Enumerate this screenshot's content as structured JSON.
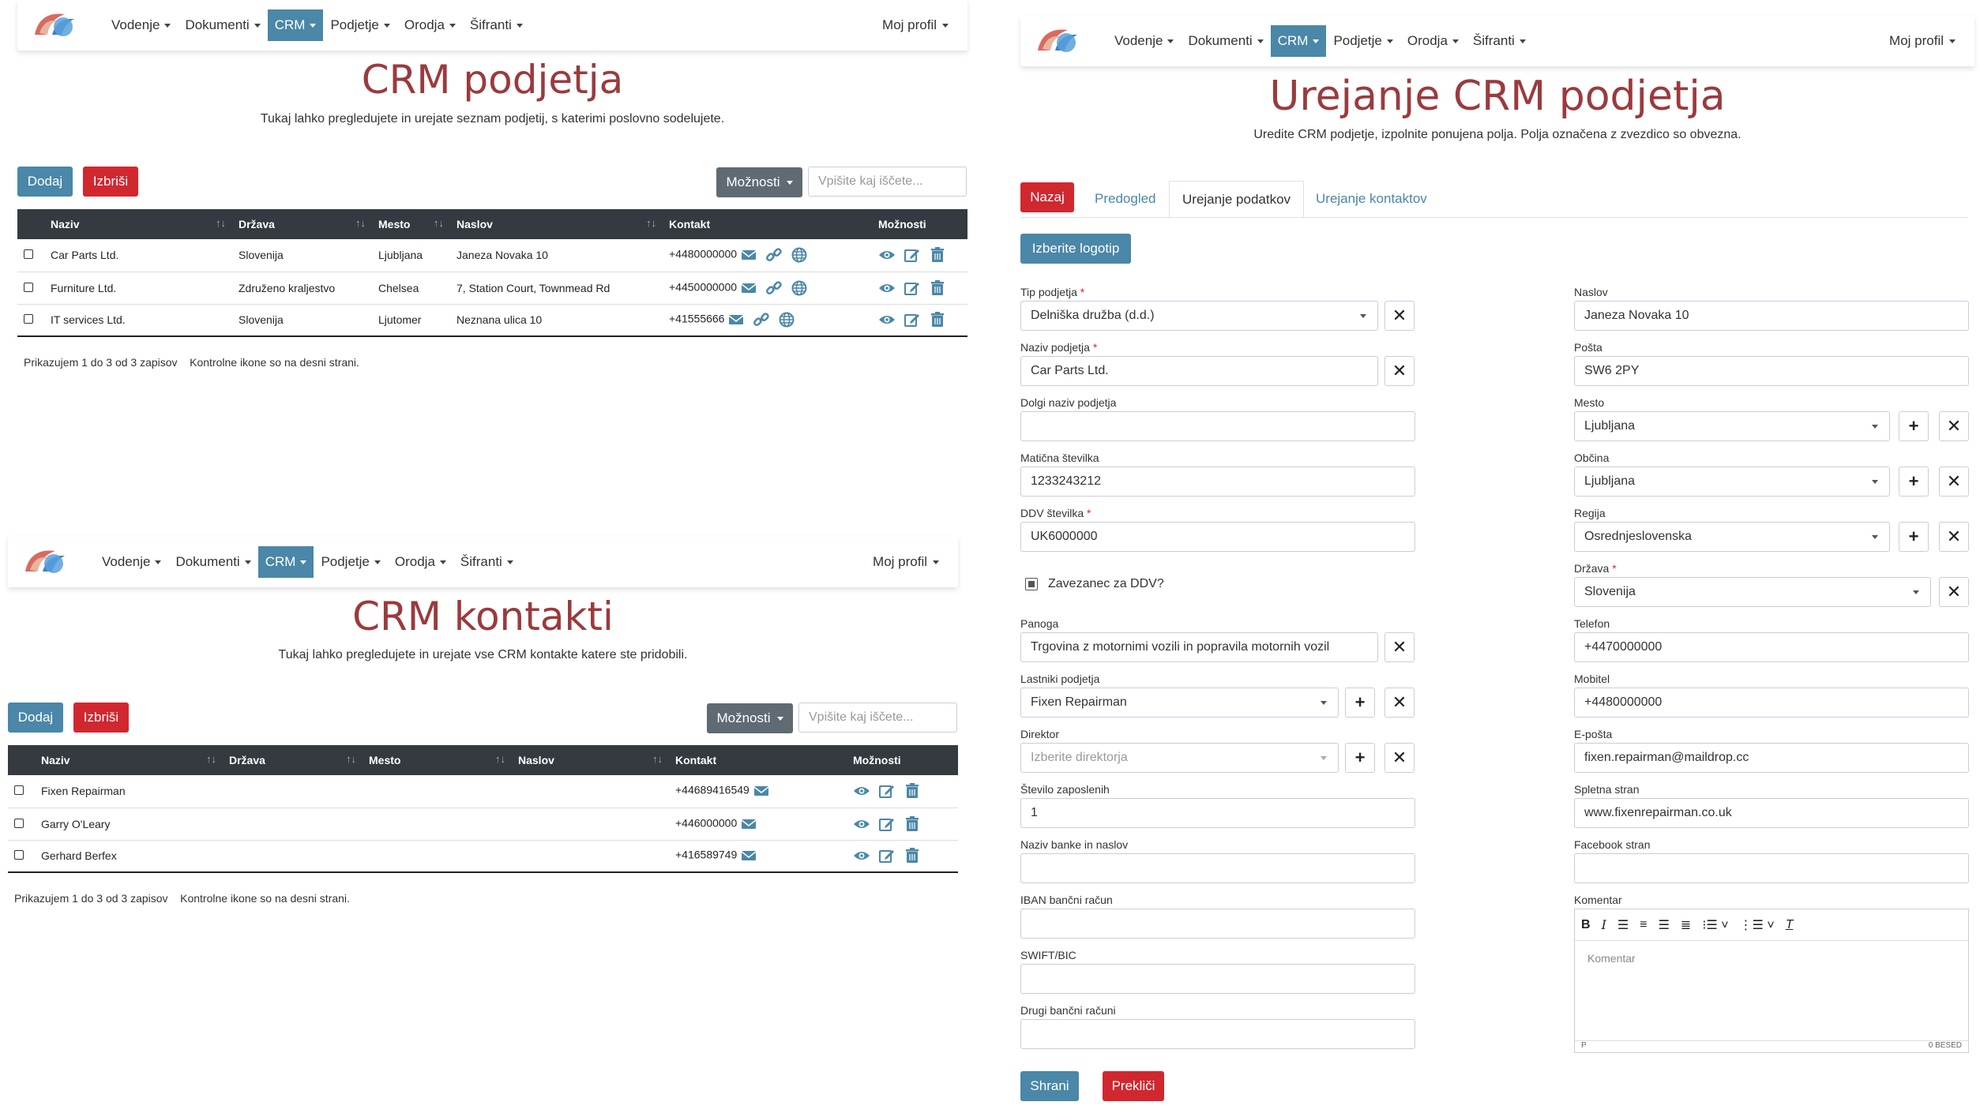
{
  "nav": {
    "items": [
      "Vodenje",
      "Dokumenti",
      "CRM",
      "Podjetje",
      "Orodja",
      "Šifranti"
    ],
    "profile": "Moj profil"
  },
  "companies": {
    "title": "CRM podjetja",
    "subtitle": "Tukaj lahko pregledujete in urejate seznam podjetij, s katerimi poslovno sodelujete.",
    "add": "Dodaj",
    "delete": "Izbriši",
    "options": "Možnosti",
    "search_placeholder": "Vpišite kaj iščete...",
    "columns": [
      "Naziv",
      "Država",
      "Mesto",
      "Naslov",
      "Kontakt",
      "Možnosti"
    ],
    "rows": [
      {
        "name": "Car Parts Ltd.",
        "country": "Slovenija",
        "city": "Ljubljana",
        "address": "Janeza Novaka 10",
        "contact": "+4480000000"
      },
      {
        "name": "Furniture Ltd.",
        "country": "Združeno kraljestvo",
        "city": "Chelsea",
        "address": "7, Station Court, Townmead Rd",
        "contact": "+4450000000"
      },
      {
        "name": "IT services Ltd.",
        "country": "Slovenija",
        "city": "Ljutomer",
        "address": "Neznana ulica 10",
        "contact": "+41555666"
      }
    ],
    "footer": "Prikazujem 1 do 3 od 3 zapisov",
    "footer_note": "Kontrolne ikone so na desni strani."
  },
  "contacts": {
    "title": "CRM kontakti",
    "subtitle": "Tukaj lahko pregledujete in urejate vse CRM kontakte katere ste pridobili.",
    "add": "Dodaj",
    "delete": "Izbriši",
    "options": "Možnosti",
    "search_placeholder": "Vpišite kaj iščete...",
    "columns": [
      "Naziv",
      "Država",
      "Mesto",
      "Naslov",
      "Kontakt",
      "Možnosti"
    ],
    "rows": [
      {
        "name": "Fixen Repairman",
        "contact": "+44689416549"
      },
      {
        "name": "Garry O'Leary",
        "contact": "+446000000"
      },
      {
        "name": "Gerhard Berfex",
        "contact": "+416589749"
      }
    ],
    "footer": "Prikazujem 1 do 3 od 3 zapisov",
    "footer_note": "Kontrolne ikone so na desni strani."
  },
  "edit": {
    "title": "Urejanje CRM podjetja",
    "subtitle": "Uredite CRM podjetje, izpolnite ponujena polja. Polja označena z zvezdico so obvezna.",
    "back": "Nazaj",
    "tabs": [
      "Predogled",
      "Urejanje podatkov",
      "Urejanje kontaktov"
    ],
    "logo_btn": "Izberite logotip",
    "left": {
      "type_label": "Tip podjetja",
      "type_value": "Delniška družba (d.d.)",
      "name_label": "Naziv podjetja",
      "name_value": "Car Parts Ltd.",
      "longname_label": "Dolgi naziv podjetja",
      "reg_label": "Matična številka",
      "reg_value": "1233243212",
      "vat_label": "DDV številka",
      "vat_value": "UK6000000",
      "vat_payer": "Zavezanec za DDV?",
      "industry_label": "Panoga",
      "industry_value": "Trgovina z motornimi vozili in popravila motornih vozil",
      "owners_label": "Lastniki podjetja",
      "owners_value": "Fixen Repairman",
      "director_label": "Direktor",
      "director_placeholder": "Izberite direktorja",
      "employees_label": "Število zaposlenih",
      "employees_value": "1",
      "bank_label": "Naziv banke in naslov",
      "iban_label": "IBAN bančni račun",
      "swift_label": "SWIFT/BIC",
      "other_label": "Drugi bančni računi"
    },
    "right": {
      "address_label": "Naslov",
      "address_value": "Janeza Novaka 10",
      "post_label": "Pošta",
      "post_value": "SW6 2PY",
      "city_label": "Mesto",
      "city_value": "Ljubljana",
      "muni_label": "Občina",
      "muni_value": "Ljubljana",
      "region_label": "Regija",
      "region_value": "Osrednjeslovenska",
      "country_label": "Država",
      "country_value": "Slovenija",
      "phone_label": "Telefon",
      "phone_value": "+4470000000",
      "mobile_label": "Mobitel",
      "mobile_value": "+4480000000",
      "email_label": "E-pošta",
      "email_value": "fixen.repairman@maildrop.cc",
      "web_label": "Spletna stran",
      "web_value": "www.fixenrepairman.co.uk",
      "fb_label": "Facebook stran",
      "comment_label": "Komentar",
      "comment_placeholder": "Komentar",
      "status_left": "P",
      "status_right": "0 BESED"
    },
    "save": "Shrani",
    "cancel": "Prekliči"
  },
  "colors": {
    "accent": "#4a87a8",
    "danger": "#d1272f",
    "title": "#9b3a3d",
    "header": "#343a40"
  }
}
